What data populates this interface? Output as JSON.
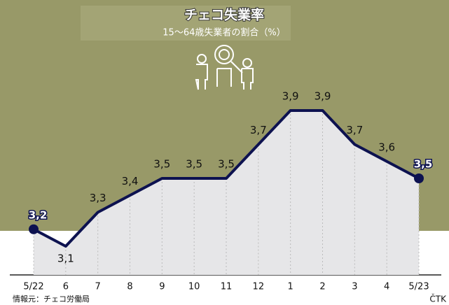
{
  "chart_data": {
    "type": "line",
    "title": "チェコ失業率",
    "subtitle": "15〜64歳失業者の割合（%）",
    "categories": [
      "5/22",
      "6",
      "7",
      "8",
      "9",
      "10",
      "11",
      "12",
      "1",
      "2",
      "3",
      "4",
      "5/23"
    ],
    "values": [
      3.2,
      3.1,
      3.3,
      3.4,
      3.5,
      3.5,
      3.5,
      3.7,
      3.9,
      3.9,
      3.7,
      3.6,
      3.5
    ],
    "value_labels": [
      "3,2",
      "3,1",
      "3,3",
      "3,4",
      "3,5",
      "3,5",
      "3,5",
      "3,7",
      "3,9",
      "3,9",
      "3,7",
      "3,6",
      "3,5"
    ],
    "color": "#0d1250",
    "fill_color": "#e6e6e8",
    "source": "情報元：チェコ労働局",
    "credit": "ČTK"
  }
}
